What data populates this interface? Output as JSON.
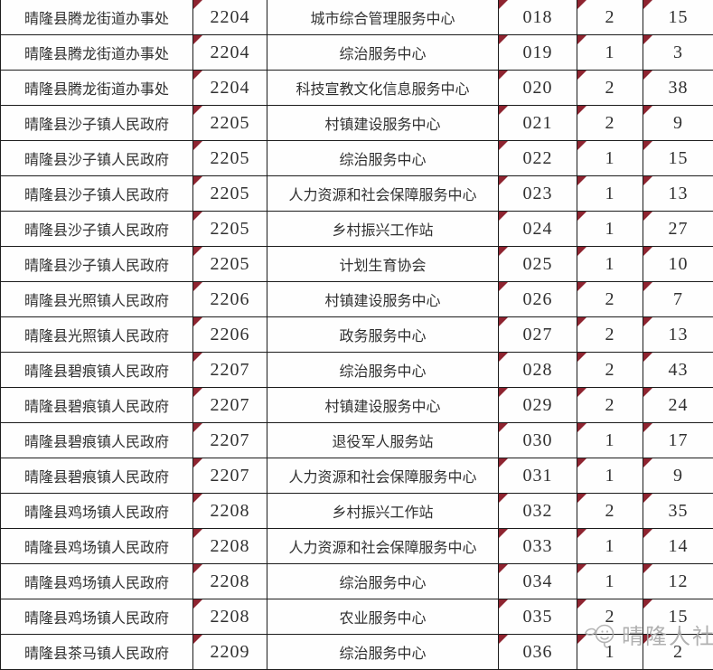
{
  "table": {
    "rows": [
      [
        "晴隆县腾龙街道办事处",
        "2204",
        "城市综合管理服务中心",
        "018",
        "2",
        "15"
      ],
      [
        "晴隆县腾龙街道办事处",
        "2204",
        "综治服务中心",
        "019",
        "1",
        "3"
      ],
      [
        "晴隆县腾龙街道办事处",
        "2204",
        "科技宣教文化信息服务中心",
        "020",
        "2",
        "38"
      ],
      [
        "晴隆县沙子镇人民政府",
        "2205",
        "村镇建设服务中心",
        "021",
        "2",
        "9"
      ],
      [
        "晴隆县沙子镇人民政府",
        "2205",
        "综治服务中心",
        "022",
        "1",
        "15"
      ],
      [
        "晴隆县沙子镇人民政府",
        "2205",
        "人力资源和社会保障服务中心",
        "023",
        "1",
        "13"
      ],
      [
        "晴隆县沙子镇人民政府",
        "2205",
        "乡村振兴工作站",
        "024",
        "1",
        "27"
      ],
      [
        "晴隆县沙子镇人民政府",
        "2205",
        "计划生育协会",
        "025",
        "1",
        "10"
      ],
      [
        "晴隆县光照镇人民政府",
        "2206",
        "村镇建设服务中心",
        "026",
        "2",
        "7"
      ],
      [
        "晴隆县光照镇人民政府",
        "2206",
        "政务服务中心",
        "027",
        "2",
        "13"
      ],
      [
        "晴隆县碧痕镇人民政府",
        "2207",
        "综治服务中心",
        "028",
        "2",
        "43"
      ],
      [
        "晴隆县碧痕镇人民政府",
        "2207",
        "村镇建设服务中心",
        "029",
        "2",
        "24"
      ],
      [
        "晴隆县碧痕镇人民政府",
        "2207",
        "退役军人服务站",
        "030",
        "1",
        "17"
      ],
      [
        "晴隆县碧痕镇人民政府",
        "2207",
        "人力资源和社会保障服务中心",
        "031",
        "1",
        "9"
      ],
      [
        "晴隆县鸡场镇人民政府",
        "2208",
        "乡村振兴工作站",
        "032",
        "2",
        "35"
      ],
      [
        "晴隆县鸡场镇人民政府",
        "2208",
        "人力资源和社会保障服务中心",
        "033",
        "1",
        "14"
      ],
      [
        "晴隆县鸡场镇人民政府",
        "2208",
        "综治服务中心",
        "034",
        "1",
        "12"
      ],
      [
        "晴隆县鸡场镇人民政府",
        "2208",
        "农业服务中心",
        "035",
        "2",
        "15"
      ],
      [
        "晴隆县茶马镇人民政府",
        "2209",
        "综治服务中心",
        "036",
        "1",
        "2"
      ]
    ]
  },
  "watermark": {
    "text": "晴隆人社"
  },
  "icons": {
    "cell_flag": "red-corner-triangle",
    "watermark_logo": "bird-mascot-logo"
  },
  "colors": {
    "flag_red": "#8e2430",
    "border": "#1c1c1c",
    "text": "#303030",
    "watermark_gray": "#a8a8a8",
    "background": "#ffffff"
  }
}
